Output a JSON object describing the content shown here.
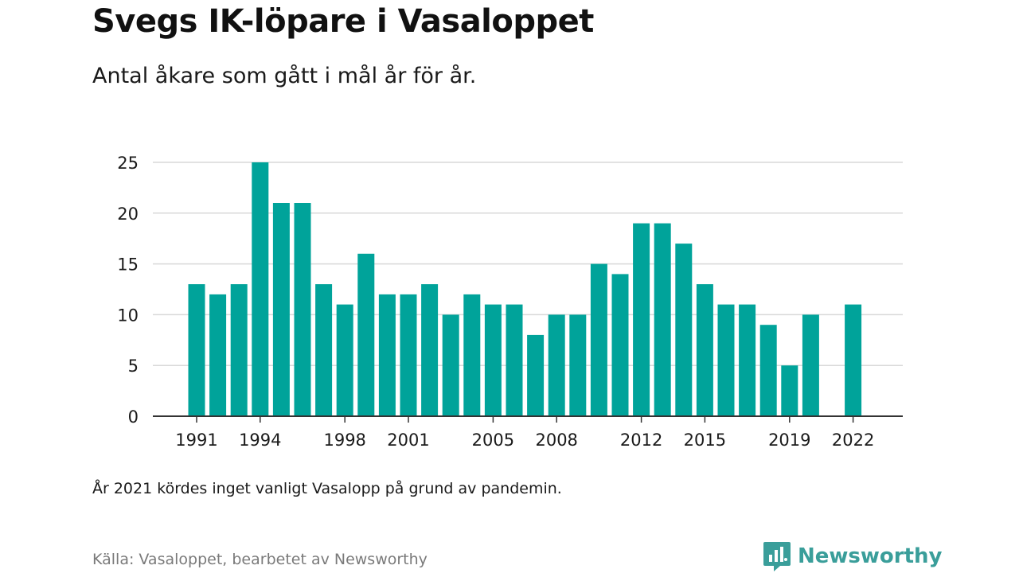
{
  "header": {
    "title": "Svegs IK-löpare i Vasaloppet",
    "subtitle": "Antal åkare som gått i mål år för år."
  },
  "footer": {
    "note": "År 2021 kördes inget vanligt Vasalopp på grund av pandemin.",
    "source": "Källa: Vasaloppet, bearbetet av Newsworthy",
    "brand": "Newsworthy",
    "brand_icon": "newsworthy-logo-icon"
  },
  "colors": {
    "bar": "#00a39a",
    "grid": "#d9d9d9",
    "axis": "#333333",
    "brand": "#3a9e9a"
  },
  "chart_data": {
    "type": "bar",
    "title": "Svegs IK-löpare i Vasaloppet",
    "subtitle": "Antal åkare som gått i mål år för år.",
    "xlabel": "",
    "ylabel": "",
    "ylim": [
      0,
      25
    ],
    "yticks": [
      0,
      5,
      10,
      15,
      20,
      25
    ],
    "xticks": [
      1991,
      1994,
      1998,
      2001,
      2005,
      2008,
      2012,
      2015,
      2019,
      2022
    ],
    "grid": true,
    "legend": "none",
    "x": [
      1991,
      1992,
      1993,
      1994,
      1995,
      1996,
      1997,
      1998,
      1999,
      2000,
      2001,
      2002,
      2003,
      2004,
      2005,
      2006,
      2007,
      2008,
      2009,
      2010,
      2011,
      2012,
      2013,
      2014,
      2015,
      2016,
      2017,
      2018,
      2019,
      2020,
      2022
    ],
    "values": [
      13,
      12,
      13,
      25,
      21,
      21,
      13,
      11,
      16,
      12,
      12,
      13,
      10,
      12,
      11,
      11,
      8,
      10,
      10,
      15,
      14,
      19,
      19,
      17,
      13,
      11,
      11,
      9,
      5,
      10,
      11
    ]
  }
}
